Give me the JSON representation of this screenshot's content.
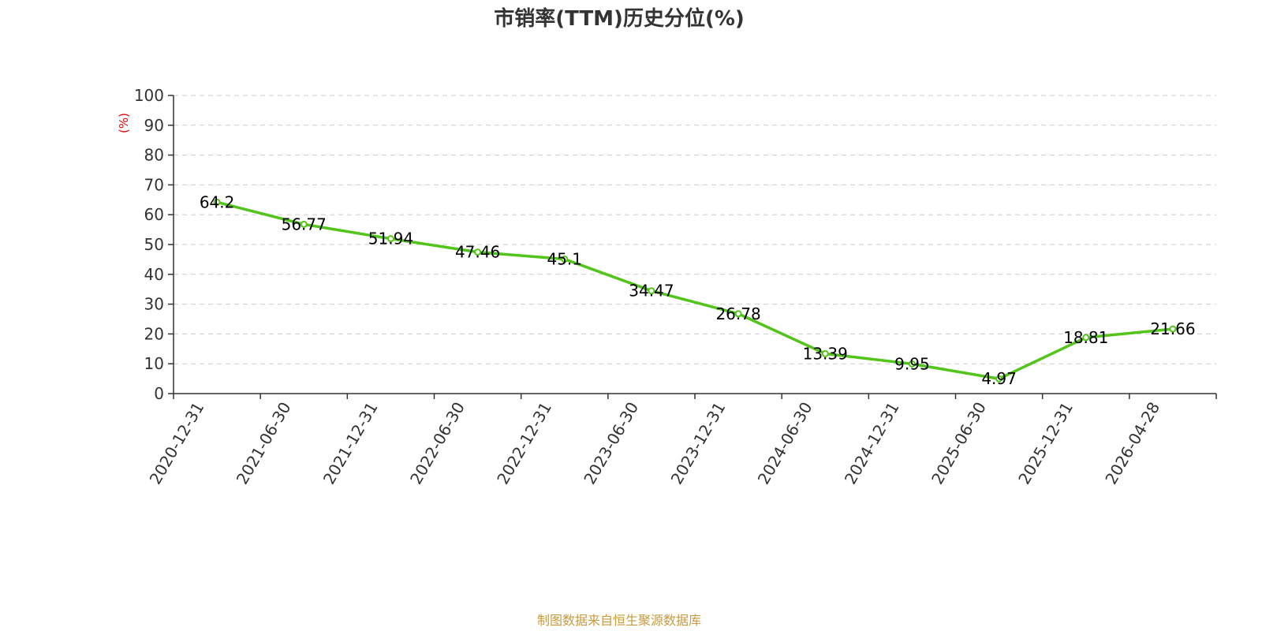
{
  "source_note": "制图数据来自恒生聚源数据库",
  "colors": {
    "line": "#52c41a",
    "marker_fill": "#ffffff",
    "axis": "#333333",
    "grid": "#cccccc",
    "text": "#333333",
    "unit": "#e60000",
    "source": "#c89a3c"
  },
  "chart_data": {
    "type": "line",
    "title": "市销率(TTM)历史分位(%)",
    "ylabel": "(%)",
    "ylim": [
      0,
      100
    ],
    "yticks": [
      0,
      10,
      20,
      30,
      40,
      50,
      60,
      70,
      80,
      90,
      100
    ],
    "grid": true,
    "categories": [
      "2020-12-31",
      "2021-06-30",
      "2021-12-31",
      "2022-06-30",
      "2022-12-31",
      "2023-06-30",
      "2023-12-31",
      "2024-06-30",
      "2024-12-31",
      "2025-06-30",
      "2025-12-31",
      "2026-04-28"
    ],
    "values": [
      64.2,
      56.77,
      51.94,
      47.46,
      45.1,
      34.47,
      26.78,
      13.39,
      9.95,
      4.97,
      18.81,
      21.66
    ],
    "data_labels": [
      "64.2",
      "56.77",
      "51.94",
      "47.46",
      "45.1",
      "34.47",
      "26.78",
      "13.39",
      "9.95",
      "4.97",
      "18.81",
      "21.66"
    ]
  }
}
